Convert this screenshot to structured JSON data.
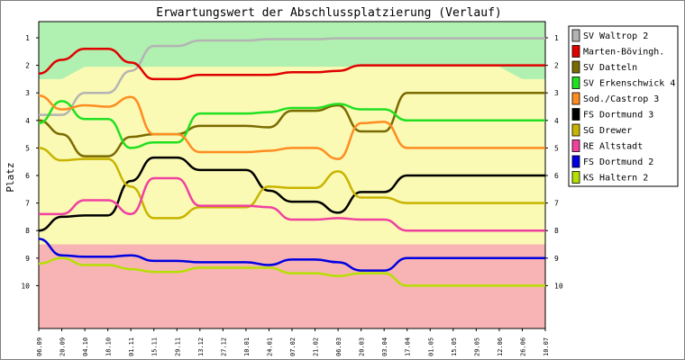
{
  "chart_data": {
    "type": "line",
    "title": "Erwartungswert der Abschlussplatzierung (Verlauf)",
    "ylabel": "Platz",
    "xlabel": "",
    "ylim": [
      1,
      10
    ],
    "y_inverted": true,
    "y_ticks": [
      "1",
      "2",
      "3",
      "4",
      "5",
      "6",
      "7",
      "8",
      "9",
      "10"
    ],
    "x": [
      "06.09",
      "20.09",
      "04.10",
      "18.10",
      "01.11",
      "15.11",
      "29.11",
      "13.12",
      "27.12",
      "10.01",
      "24.01",
      "07.02",
      "21.02",
      "06.03",
      "20.03",
      "03.04",
      "17.04",
      "01.05",
      "15.05",
      "29.05",
      "12.06",
      "26.06",
      "10.07"
    ],
    "grid": false,
    "legend_position": "right",
    "zones": [
      {
        "name": "promotion",
        "color": "#b0f0b0"
      },
      {
        "name": "mid",
        "color": "#fafab4"
      },
      {
        "name": "relegation",
        "color": "#f8b4b4"
      }
    ],
    "series": [
      {
        "name": "SV Waltrop 2",
        "color": "#b4b4b4",
        "values": [
          3.8,
          3.8,
          3.0,
          3.0,
          2.2,
          1.3,
          1.3,
          1.1,
          1.1,
          1.1,
          1.05,
          1.05,
          1.05,
          1.02,
          1.02,
          1.02,
          1.02,
          1.02,
          1.02,
          1.02,
          1.02,
          1.02,
          1.02
        ]
      },
      {
        "name": "Marten-Bövingh.",
        "color": "#e00000",
        "values": [
          2.3,
          1.8,
          1.4,
          1.4,
          1.9,
          2.5,
          2.5,
          2.35,
          2.35,
          2.35,
          2.35,
          2.25,
          2.25,
          2.2,
          2.0,
          2.0,
          2.0,
          2.0,
          2.0,
          2.0,
          2.0,
          2.0,
          2.0
        ]
      },
      {
        "name": "SV Datteln",
        "color": "#7a6a00",
        "values": [
          4.0,
          4.5,
          5.3,
          5.3,
          4.6,
          4.5,
          4.5,
          4.2,
          4.2,
          4.2,
          4.25,
          3.65,
          3.65,
          3.45,
          4.4,
          4.4,
          3.0,
          3.0,
          3.0,
          3.0,
          3.0,
          3.0,
          3.0
        ]
      },
      {
        "name": "SV Erkenschwick 4",
        "color": "#20e020",
        "values": [
          4.1,
          3.3,
          3.95,
          3.95,
          5.0,
          4.8,
          4.8,
          3.75,
          3.75,
          3.75,
          3.7,
          3.55,
          3.55,
          3.4,
          3.6,
          3.6,
          4.0,
          4.0,
          4.0,
          4.0,
          4.0,
          4.0,
          4.0
        ]
      },
      {
        "name": "Sod./Castrop 3",
        "color": "#ff8c20",
        "values": [
          3.1,
          3.6,
          3.45,
          3.5,
          3.15,
          4.5,
          4.5,
          5.15,
          5.15,
          5.15,
          5.1,
          5.0,
          5.0,
          5.4,
          4.1,
          4.05,
          5.0,
          5.0,
          5.0,
          5.0,
          5.0,
          5.0,
          5.0
        ]
      },
      {
        "name": "FS Dortmund 3",
        "color": "#000000",
        "values": [
          8.0,
          7.5,
          7.45,
          7.45,
          6.2,
          5.35,
          5.35,
          5.8,
          5.8,
          5.8,
          6.55,
          6.95,
          6.95,
          7.35,
          6.6,
          6.6,
          6.0,
          6.0,
          6.0,
          6.0,
          6.0,
          6.0,
          6.0
        ]
      },
      {
        "name": "SG Drewer",
        "color": "#c8b400",
        "values": [
          5.0,
          5.45,
          5.4,
          5.4,
          6.4,
          7.55,
          7.55,
          7.15,
          7.15,
          7.15,
          6.4,
          6.45,
          6.45,
          5.85,
          6.8,
          6.8,
          7.0,
          7.0,
          7.0,
          7.0,
          7.0,
          7.0,
          7.0
        ]
      },
      {
        "name": "RE Altstadt",
        "color": "#f040a0",
        "values": [
          7.4,
          7.4,
          6.9,
          6.9,
          7.4,
          6.1,
          6.1,
          7.1,
          7.1,
          7.1,
          7.15,
          7.6,
          7.6,
          7.55,
          7.6,
          7.6,
          8.0,
          8.0,
          8.0,
          8.0,
          8.0,
          8.0,
          8.0
        ]
      },
      {
        "name": "FS Dortmund 2",
        "color": "#0000e0",
        "values": [
          8.3,
          8.9,
          8.95,
          8.95,
          8.9,
          9.1,
          9.1,
          9.15,
          9.15,
          9.15,
          9.25,
          9.05,
          9.05,
          9.15,
          9.45,
          9.45,
          9.0,
          9.0,
          9.0,
          9.0,
          9.0,
          9.0,
          9.0
        ]
      },
      {
        "name": "KS Haltern 2",
        "color": "#b4e000",
        "values": [
          9.2,
          9.0,
          9.25,
          9.25,
          9.4,
          9.5,
          9.5,
          9.35,
          9.35,
          9.35,
          9.35,
          9.55,
          9.55,
          9.65,
          9.55,
          9.55,
          10.0,
          10.0,
          10.0,
          10.0,
          10.0,
          10.0,
          10.0
        ]
      }
    ]
  }
}
